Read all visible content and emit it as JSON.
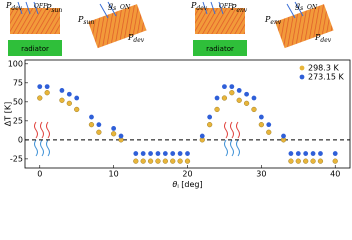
{
  "panels": [
    {
      "labels": [
        {
          "main": "P",
          "sub": "dev"
        },
        {
          "main": "",
          "sub": "OFF"
        },
        {
          "main": "P",
          "sub": "sun"
        }
      ],
      "box": "radiator"
    },
    {
      "labels": [
        {
          "main": "P",
          "sub": "sun"
        },
        {
          "main": "g",
          "sub": "s"
        },
        {
          "main": "",
          "sub": "ON"
        },
        {
          "main": "P",
          "sub": "dev"
        }
      ]
    },
    {
      "labels": [
        {
          "main": "P",
          "sub": "dev"
        },
        {
          "main": "",
          "sub": "OFF"
        },
        {
          "main": "P",
          "sub": "env"
        }
      ],
      "box": "radiator"
    },
    {
      "labels": [
        {
          "main": "P",
          "sub": "env"
        },
        {
          "main": "g",
          "sub": "s"
        },
        {
          "main": "",
          "sub": "ON"
        },
        {
          "main": "P",
          "sub": "dev"
        }
      ]
    }
  ],
  "chart_data": {
    "type": "scatter",
    "y_label": "ΔT [K]",
    "x_label": {
      "symbol": "θ",
      "sub": "i",
      "unit": "[deg]"
    },
    "x": [
      0,
      1,
      3,
      4,
      5,
      7,
      8,
      10,
      11,
      13,
      14,
      15,
      16,
      17,
      18,
      19,
      20,
      22,
      23,
      24,
      25,
      26,
      27,
      28,
      29,
      30,
      31,
      33,
      34,
      35,
      36,
      37,
      38,
      40
    ],
    "series": [
      {
        "name": "298.3 K",
        "color": "#e8b53a",
        "values": [
          55,
          62,
          52,
          48,
          40,
          20,
          10,
          8,
          0,
          -28,
          -28,
          -28,
          -28,
          -28,
          -28,
          -28,
          -28,
          0,
          20,
          40,
          55,
          62,
          52,
          48,
          40,
          20,
          10,
          0,
          -28,
          -28,
          -28,
          -28,
          -28,
          -28
        ]
      },
      {
        "name": "273.15 K",
        "color": "#2f5fd8",
        "values": [
          70,
          70,
          65,
          60,
          55,
          30,
          20,
          15,
          5,
          -18,
          -18,
          -18,
          -18,
          -18,
          -18,
          -18,
          -18,
          5,
          30,
          55,
          70,
          70,
          65,
          60,
          55,
          30,
          20,
          5,
          -18,
          -18,
          -18,
          -18,
          -18,
          -18
        ]
      }
    ],
    "xlim": [
      -2,
      42
    ],
    "ylim": [
      -37,
      105
    ],
    "xticks": [
      0,
      10,
      20,
      30,
      40
    ],
    "yticks": [
      -25,
      0,
      25,
      50,
      75,
      100
    ],
    "reference_line": 0,
    "legend": "upper right"
  }
}
